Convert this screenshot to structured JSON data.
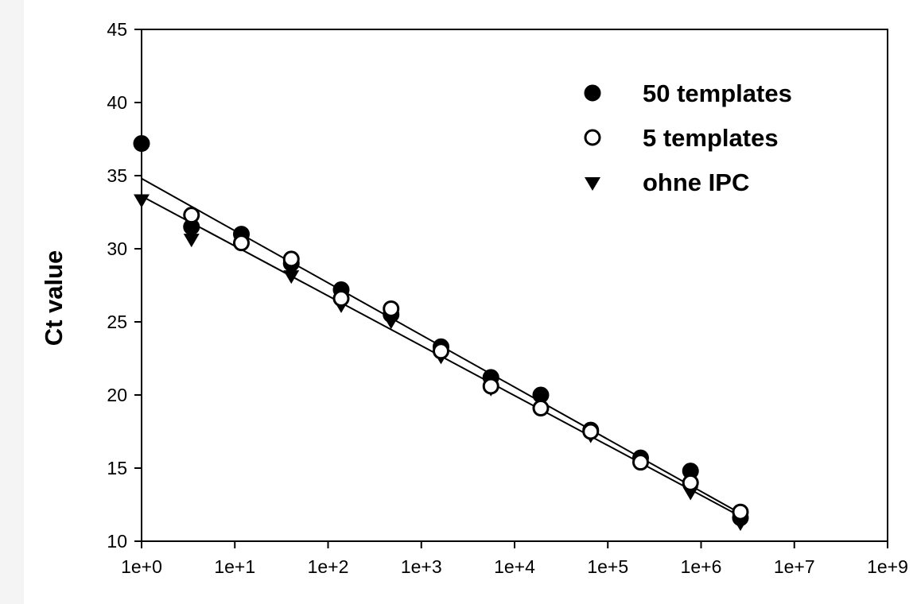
{
  "chart_data": {
    "type": "scatter",
    "title": "",
    "xlabel": "",
    "ylabel": "Ct value",
    "x_scale": "log",
    "xlim": [
      1,
      1000000000
    ],
    "ylim": [
      10,
      45
    ],
    "x_ticks": [
      1,
      10,
      100,
      1000,
      10000,
      100000,
      1000000,
      10000000,
      1000000000
    ],
    "x_tick_labels": [
      "1e+0",
      "1e+1",
      "1e+2",
      "1e+3",
      "1e+4",
      "1e+5",
      "1e+6",
      "1e+7",
      "1e+9"
    ],
    "y_ticks": [
      10,
      15,
      20,
      25,
      30,
      35,
      40,
      45
    ],
    "y_tick_labels": [
      "10",
      "15",
      "20",
      "25",
      "30",
      "35",
      "40",
      "45"
    ],
    "grid": false,
    "legend_position": "top-right",
    "series": [
      {
        "name": "50 templates",
        "marker": "filled-circle",
        "x": [
          1,
          4,
          16,
          64,
          256,
          1024,
          4096,
          16384,
          65536,
          262144,
          1048576,
          4194304,
          16777216
        ],
        "y": [
          37.2,
          31.5,
          31.0,
          29.0,
          27.2,
          25.5,
          23.3,
          21.2,
          20.0,
          17.6,
          15.7,
          14.8,
          11.6
        ]
      },
      {
        "name": "5 templates",
        "marker": "open-circle",
        "x": [
          4,
          16,
          64,
          256,
          1024,
          4096,
          16384,
          65536,
          262144,
          1048576,
          4194304,
          16777216
        ],
        "y": [
          32.3,
          30.4,
          29.3,
          26.6,
          25.9,
          23.0,
          20.6,
          19.1,
          17.5,
          15.4,
          14.0,
          12.0
        ]
      },
      {
        "name": "ohne IPC",
        "marker": "filled-triangle-down",
        "x": [
          1,
          4,
          16,
          64,
          256,
          1024,
          4096,
          16384,
          65536,
          262144,
          1048576,
          4194304,
          16777216
        ],
        "y": [
          33.4,
          30.7,
          30.5,
          28.2,
          26.2,
          25.1,
          22.7,
          20.5,
          19.6,
          17.3,
          15.5,
          13.4,
          11.3
        ]
      }
    ],
    "trend_lines": [
      {
        "x": [
          1,
          16777216
        ],
        "y": [
          34.8,
          11.9
        ]
      },
      {
        "x": [
          1,
          16777216
        ],
        "y": [
          33.6,
          11.7
        ]
      }
    ],
    "colors": {
      "marker": "#000000",
      "line": "#000000",
      "background": "#ffffff"
    }
  }
}
